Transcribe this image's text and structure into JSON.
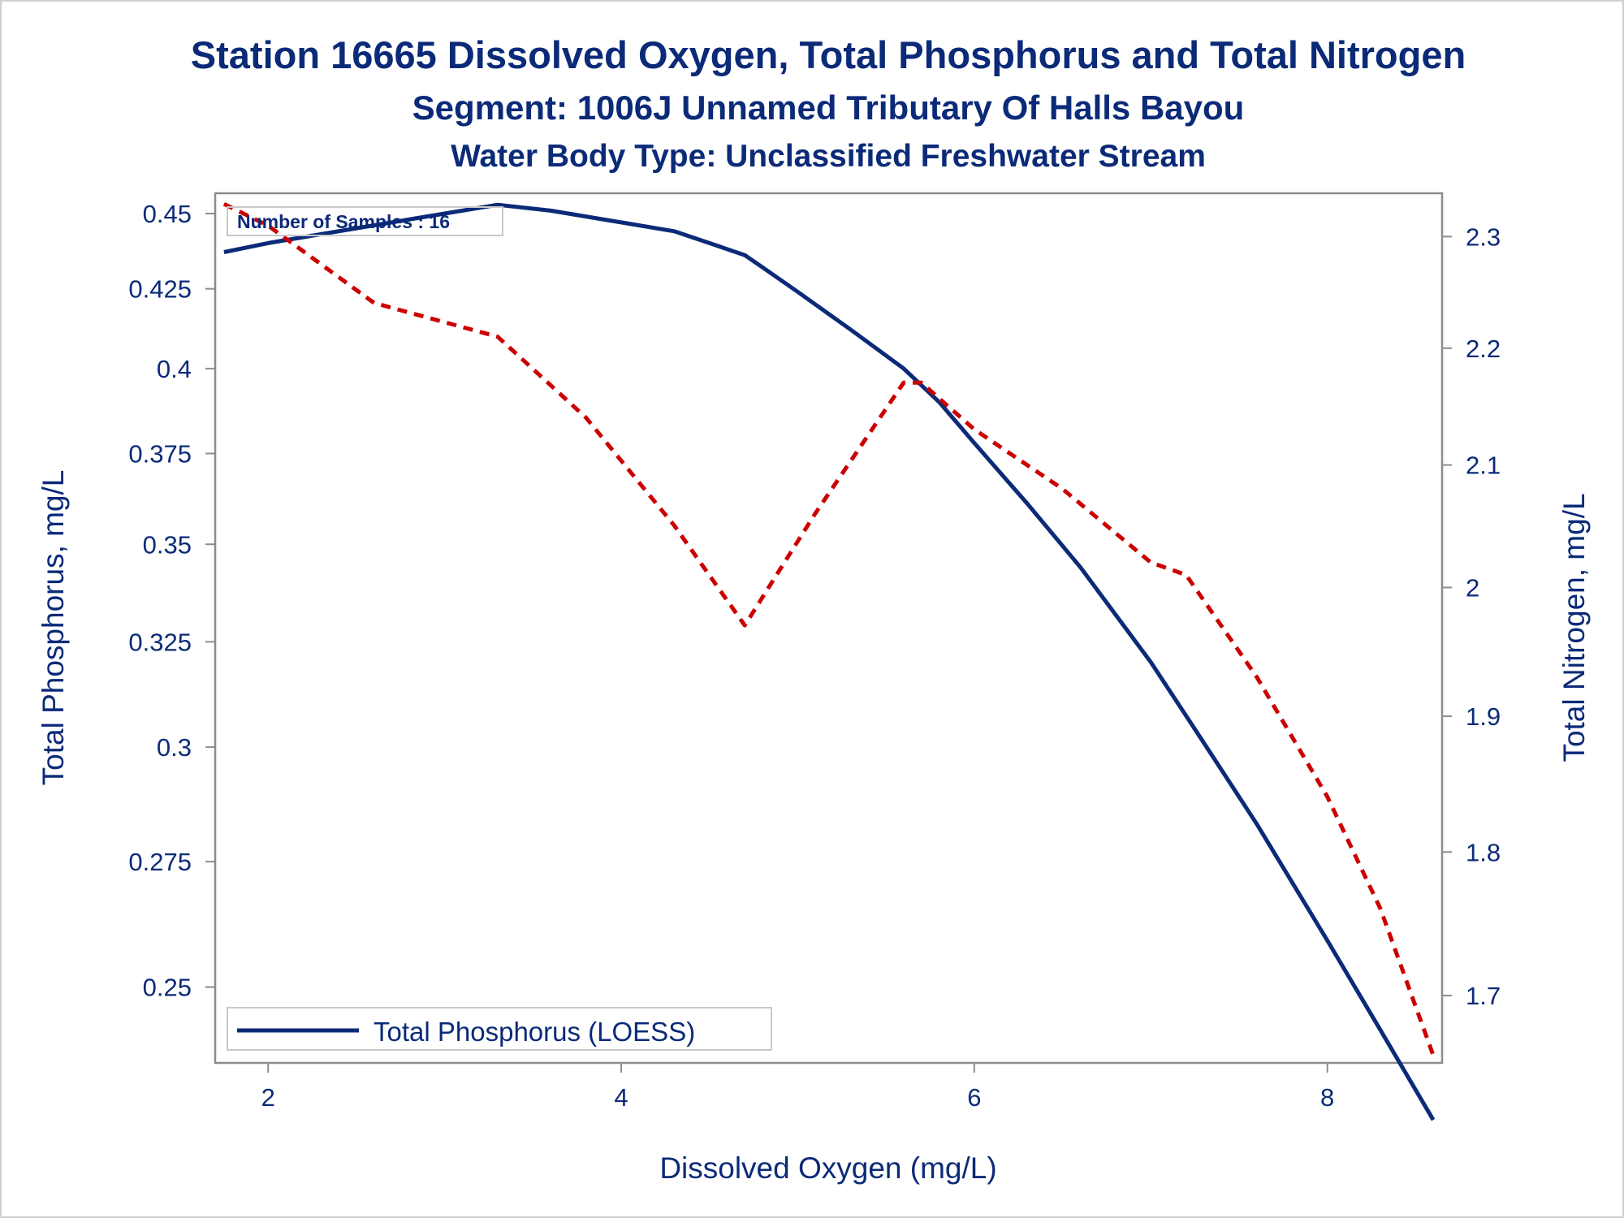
{
  "chart_data": {
    "type": "line",
    "title": "Station 16665  Dissolved Oxygen, Total Phosphorus and Total Nitrogen",
    "subtitle": "Segment: 1006J  Unnamed Tributary Of Halls Bayou",
    "subtitle2": "Water Body Type: Unclassified Freshwater Stream",
    "xlabel": "Dissolved Oxygen (mg/L)",
    "ylabel_left": "Total Phosphorus, mg/L",
    "ylabel_right": "Total Nitrogen, mg/L",
    "xlim": [
      1.7,
      8.65
    ],
    "ylim_left": [
      0.236,
      0.457
    ],
    "ylim_right": [
      1.655,
      2.34
    ],
    "x_ticks": [
      2,
      4,
      6,
      8
    ],
    "y_left_ticks": [
      0.25,
      0.275,
      0.3,
      0.325,
      0.35,
      0.375,
      0.4,
      0.425,
      0.45
    ],
    "y_left_tick_labels": [
      "0.25",
      "0.275",
      "0.3",
      "0.325",
      "0.35",
      "0.375",
      "0.4",
      "0.425",
      "0.45"
    ],
    "y_right_ticks": [
      1.7,
      1.8,
      1.9,
      2.0,
      2.1,
      2.2,
      2.3
    ],
    "y_right_tick_labels": [
      "1.7",
      "1.8",
      "1.9",
      "2",
      "2.1",
      "2.2",
      "2.3"
    ],
    "inset_text": "Number of Samples : 16",
    "legend_position": "bottom-left",
    "series": [
      {
        "name": "Total Phosphorus (LOESS)",
        "axis": "left",
        "style": "solid",
        "color": "#0b2a78",
        "x": [
          1.75,
          2.0,
          2.5,
          3.0,
          3.3,
          3.6,
          4.0,
          4.3,
          4.5,
          4.7,
          4.8,
          5.0,
          5.3,
          5.6,
          5.8,
          6.0,
          6.3,
          6.6,
          7.0,
          7.3,
          7.6,
          8.0,
          8.3,
          8.6
        ],
        "y": [
          0.437,
          0.44,
          0.445,
          0.45,
          0.453,
          0.451,
          0.447,
          0.444,
          0.44,
          0.436,
          0.432,
          0.424,
          0.412,
          0.4,
          0.39,
          0.378,
          0.361,
          0.344,
          0.32,
          0.301,
          0.283,
          0.259,
          0.242,
          0.226
        ]
      },
      {
        "name": "",
        "axis": "right",
        "style": "dashed",
        "color": "#cc0000",
        "x": [
          1.75,
          2.0,
          2.6,
          3.3,
          3.8,
          4.3,
          4.7,
          5.1,
          5.6,
          5.7,
          6.0,
          6.5,
          7.0,
          7.2,
          7.6,
          8.0,
          8.3,
          8.6
        ],
        "y": [
          2.33,
          2.31,
          2.24,
          2.21,
          2.14,
          2.05,
          1.97,
          2.06,
          2.17,
          2.17,
          2.13,
          2.08,
          2.02,
          2.01,
          1.93,
          1.84,
          1.76,
          1.66
        ]
      }
    ]
  }
}
